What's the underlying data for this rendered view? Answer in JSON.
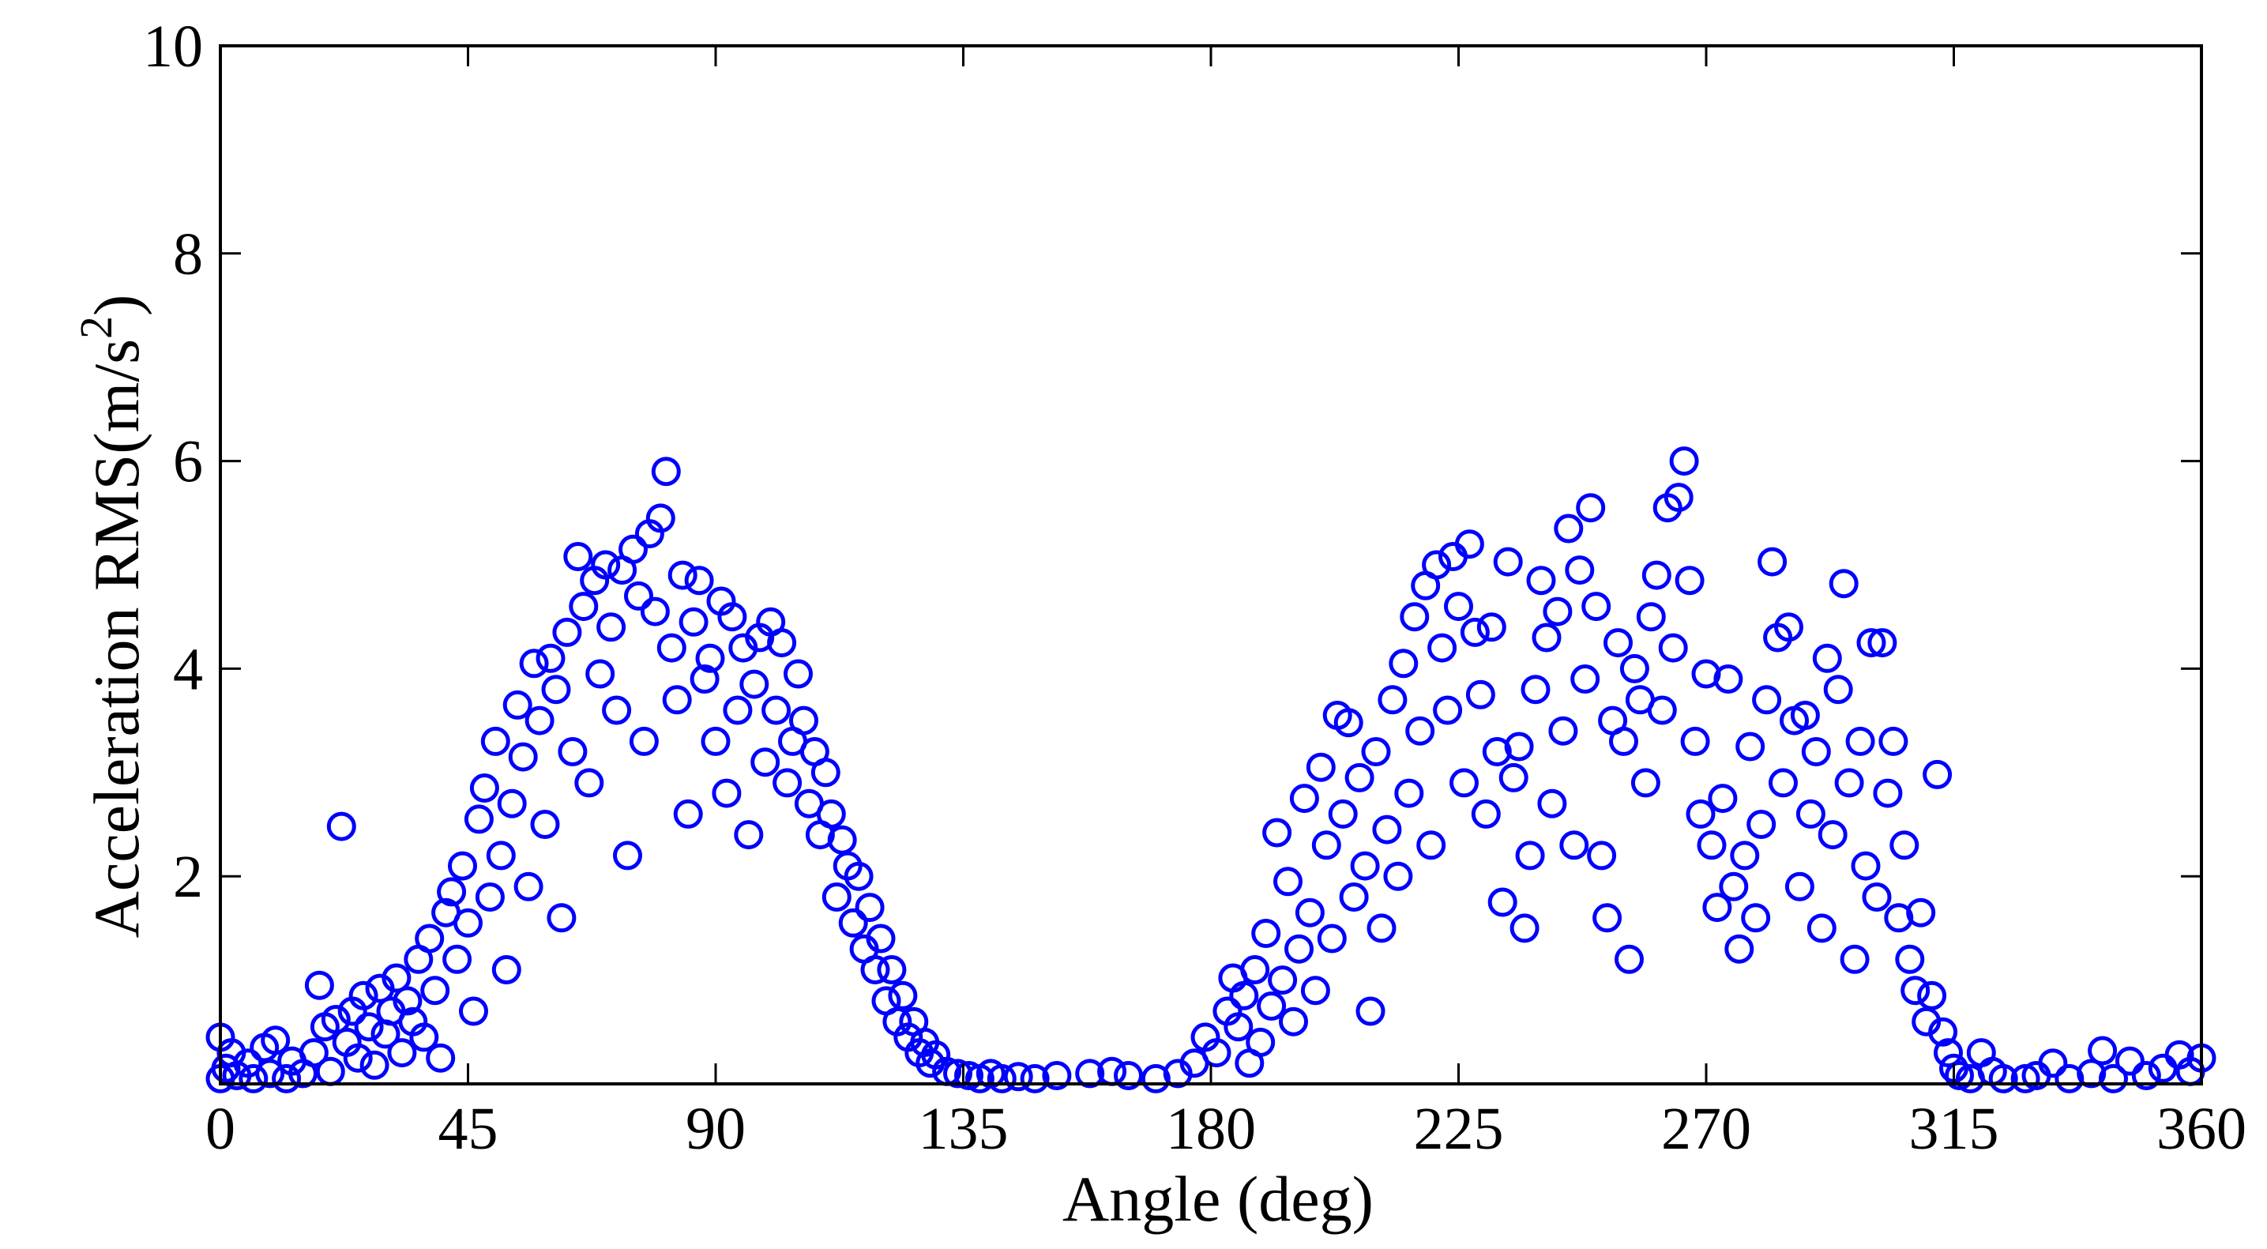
{
  "chart_data": {
    "type": "scatter",
    "title": "",
    "xlabel": "Angle (deg)",
    "ylabel": {
      "main": "Acceleration RMS(m/s",
      "superscript": "2",
      "close": ")"
    },
    "xlim": [
      0,
      360
    ],
    "ylim": [
      0,
      10
    ],
    "xticks": [
      0,
      45,
      90,
      135,
      180,
      225,
      270,
      315,
      360
    ],
    "yticks": [
      2,
      4,
      6,
      8,
      10
    ],
    "ytick_labels": [
      "2",
      "4",
      "6",
      "8",
      "10"
    ],
    "xtick_labels": [
      "0",
      "45",
      "90",
      "135",
      "180",
      "225",
      "270",
      "315",
      "360"
    ],
    "grid": false,
    "legend": "none",
    "marker": "open-circle",
    "colors": {
      "marker": "#0000ff",
      "axes": "#000000",
      "background": "#ffffff"
    },
    "series": [
      {
        "points": [
          [
            0,
            0.05
          ],
          [
            0,
            0.45
          ],
          [
            1,
            0.15
          ],
          [
            2,
            0.3
          ],
          [
            3,
            0.08
          ],
          [
            5,
            0.2
          ],
          [
            6,
            0.05
          ],
          [
            8,
            0.35
          ],
          [
            9,
            0.1
          ],
          [
            10,
            0.42
          ],
          [
            12,
            0.05
          ],
          [
            13,
            0.22
          ],
          [
            15,
            0.1
          ],
          [
            17,
            0.3
          ],
          [
            18,
            0.95
          ],
          [
            19,
            0.55
          ],
          [
            20,
            0.12
          ],
          [
            21,
            0.62
          ],
          [
            22,
            2.48
          ],
          [
            23,
            0.4
          ],
          [
            24,
            0.7
          ],
          [
            25,
            0.25
          ],
          [
            26,
            0.85
          ],
          [
            27,
            0.55
          ],
          [
            28,
            0.18
          ],
          [
            29,
            0.92
          ],
          [
            30,
            0.48
          ],
          [
            31,
            0.7
          ],
          [
            32,
            1.02
          ],
          [
            33,
            0.3
          ],
          [
            34,
            0.8
          ],
          [
            35,
            0.6
          ],
          [
            36,
            1.2
          ],
          [
            37,
            0.45
          ],
          [
            38,
            1.4
          ],
          [
            39,
            0.9
          ],
          [
            40,
            0.25
          ],
          [
            41,
            1.65
          ],
          [
            42,
            1.85
          ],
          [
            43,
            1.2
          ],
          [
            44,
            2.1
          ],
          [
            45,
            1.55
          ],
          [
            46,
            0.7
          ],
          [
            47,
            2.55
          ],
          [
            48,
            2.85
          ],
          [
            49,
            1.8
          ],
          [
            50,
            3.3
          ],
          [
            51,
            2.2
          ],
          [
            52,
            1.1
          ],
          [
            53,
            2.7
          ],
          [
            54,
            3.65
          ],
          [
            55,
            3.15
          ],
          [
            56,
            1.9
          ],
          [
            57,
            4.05
          ],
          [
            58,
            3.5
          ],
          [
            59,
            2.5
          ],
          [
            60,
            4.1
          ],
          [
            61,
            3.8
          ],
          [
            62,
            1.6
          ],
          [
            63,
            4.35
          ],
          [
            64,
            3.2
          ],
          [
            65,
            5.08
          ],
          [
            66,
            4.6
          ],
          [
            67,
            2.9
          ],
          [
            68,
            4.85
          ],
          [
            69,
            3.95
          ],
          [
            70,
            5.0
          ],
          [
            71,
            4.4
          ],
          [
            72,
            3.6
          ],
          [
            73,
            4.95
          ],
          [
            74,
            2.2
          ],
          [
            75,
            5.15
          ],
          [
            76,
            4.7
          ],
          [
            77,
            3.3
          ],
          [
            78,
            5.3
          ],
          [
            79,
            4.55
          ],
          [
            80,
            5.45
          ],
          [
            81,
            5.9
          ],
          [
            82,
            4.2
          ],
          [
            83,
            3.7
          ],
          [
            84,
            4.9
          ],
          [
            85,
            2.6
          ],
          [
            86,
            4.45
          ],
          [
            87,
            4.85
          ],
          [
            88,
            3.9
          ],
          [
            89,
            4.1
          ],
          [
            90,
            3.3
          ],
          [
            91,
            4.65
          ],
          [
            92,
            2.8
          ],
          [
            93,
            4.5
          ],
          [
            94,
            3.6
          ],
          [
            95,
            4.2
          ],
          [
            96,
            2.4
          ],
          [
            97,
            3.85
          ],
          [
            98,
            4.3
          ],
          [
            99,
            3.1
          ],
          [
            100,
            4.45
          ],
          [
            101,
            3.6
          ],
          [
            102,
            4.25
          ],
          [
            103,
            2.9
          ],
          [
            104,
            3.3
          ],
          [
            105,
            3.95
          ],
          [
            106,
            3.5
          ],
          [
            107,
            2.7
          ],
          [
            108,
            3.2
          ],
          [
            109,
            2.4
          ],
          [
            110,
            3.0
          ],
          [
            111,
            2.6
          ],
          [
            112,
            1.8
          ],
          [
            113,
            2.35
          ],
          [
            114,
            2.1
          ],
          [
            115,
            1.55
          ],
          [
            116,
            2.0
          ],
          [
            117,
            1.3
          ],
          [
            118,
            1.7
          ],
          [
            119,
            1.1
          ],
          [
            120,
            1.4
          ],
          [
            121,
            0.8
          ],
          [
            122,
            1.1
          ],
          [
            123,
            0.6
          ],
          [
            124,
            0.85
          ],
          [
            125,
            0.45
          ],
          [
            126,
            0.6
          ],
          [
            127,
            0.3
          ],
          [
            128,
            0.4
          ],
          [
            129,
            0.2
          ],
          [
            130,
            0.28
          ],
          [
            132,
            0.12
          ],
          [
            134,
            0.1
          ],
          [
            136,
            0.08
          ],
          [
            138,
            0.05
          ],
          [
            140,
            0.1
          ],
          [
            142,
            0.05
          ],
          [
            145,
            0.07
          ],
          [
            148,
            0.05
          ],
          [
            152,
            0.08
          ],
          [
            158,
            0.1
          ],
          [
            162,
            0.12
          ],
          [
            165,
            0.08
          ],
          [
            170,
            0.05
          ],
          [
            174,
            0.1
          ],
          [
            177,
            0.2
          ],
          [
            179,
            0.45
          ],
          [
            181,
            0.3
          ],
          [
            183,
            0.7
          ],
          [
            184,
            1.02
          ],
          [
            185,
            0.55
          ],
          [
            186,
            0.85
          ],
          [
            187,
            0.2
          ],
          [
            188,
            1.1
          ],
          [
            189,
            0.4
          ],
          [
            190,
            1.45
          ],
          [
            191,
            0.75
          ],
          [
            192,
            2.42
          ],
          [
            193,
            1.0
          ],
          [
            194,
            1.95
          ],
          [
            195,
            0.6
          ],
          [
            196,
            1.3
          ],
          [
            197,
            2.75
          ],
          [
            198,
            1.65
          ],
          [
            199,
            0.9
          ],
          [
            200,
            3.05
          ],
          [
            201,
            2.3
          ],
          [
            202,
            1.4
          ],
          [
            203,
            3.55
          ],
          [
            204,
            2.6
          ],
          [
            205,
            3.48
          ],
          [
            206,
            1.8
          ],
          [
            207,
            2.95
          ],
          [
            208,
            2.1
          ],
          [
            209,
            0.7
          ],
          [
            210,
            3.2
          ],
          [
            211,
            1.5
          ],
          [
            212,
            2.45
          ],
          [
            213,
            3.7
          ],
          [
            214,
            2.0
          ],
          [
            215,
            4.05
          ],
          [
            216,
            2.8
          ],
          [
            217,
            4.5
          ],
          [
            218,
            3.4
          ],
          [
            219,
            4.8
          ],
          [
            220,
            2.3
          ],
          [
            221,
            5.0
          ],
          [
            222,
            4.2
          ],
          [
            223,
            3.6
          ],
          [
            224,
            5.08
          ],
          [
            225,
            4.6
          ],
          [
            226,
            2.9
          ],
          [
            227,
            5.2
          ],
          [
            228,
            4.35
          ],
          [
            229,
            3.75
          ],
          [
            230,
            2.6
          ],
          [
            231,
            4.4
          ],
          [
            232,
            3.2
          ],
          [
            233,
            1.75
          ],
          [
            234,
            5.03
          ],
          [
            235,
            2.95
          ],
          [
            236,
            3.25
          ],
          [
            237,
            1.5
          ],
          [
            238,
            2.2
          ],
          [
            239,
            3.8
          ],
          [
            240,
            4.85
          ],
          [
            241,
            4.3
          ],
          [
            242,
            2.7
          ],
          [
            243,
            4.55
          ],
          [
            244,
            3.4
          ],
          [
            245,
            5.35
          ],
          [
            246,
            2.3
          ],
          [
            247,
            4.95
          ],
          [
            248,
            3.9
          ],
          [
            249,
            5.55
          ],
          [
            250,
            4.6
          ],
          [
            251,
            2.2
          ],
          [
            252,
            1.6
          ],
          [
            253,
            3.5
          ],
          [
            254,
            4.25
          ],
          [
            255,
            3.3
          ],
          [
            256,
            1.2
          ],
          [
            257,
            4.0
          ],
          [
            258,
            3.7
          ],
          [
            259,
            2.9
          ],
          [
            260,
            4.5
          ],
          [
            261,
            4.9
          ],
          [
            262,
            3.6
          ],
          [
            263,
            5.55
          ],
          [
            264,
            4.2
          ],
          [
            265,
            5.65
          ],
          [
            266,
            6.0
          ],
          [
            267,
            4.85
          ],
          [
            268,
            3.3
          ],
          [
            269,
            2.6
          ],
          [
            270,
            3.95
          ],
          [
            271,
            2.3
          ],
          [
            272,
            1.7
          ],
          [
            273,
            2.75
          ],
          [
            274,
            3.9
          ],
          [
            275,
            1.9
          ],
          [
            276,
            1.3
          ],
          [
            277,
            2.2
          ],
          [
            278,
            3.25
          ],
          [
            279,
            1.6
          ],
          [
            280,
            2.5
          ],
          [
            281,
            3.7
          ],
          [
            282,
            5.03
          ],
          [
            283,
            4.3
          ],
          [
            284,
            2.9
          ],
          [
            285,
            4.4
          ],
          [
            286,
            3.5
          ],
          [
            287,
            1.9
          ],
          [
            288,
            3.55
          ],
          [
            289,
            2.6
          ],
          [
            290,
            3.2
          ],
          [
            291,
            1.5
          ],
          [
            292,
            4.1
          ],
          [
            293,
            2.4
          ],
          [
            294,
            3.8
          ],
          [
            295,
            4.82
          ],
          [
            296,
            2.9
          ],
          [
            297,
            1.2
          ],
          [
            298,
            3.3
          ],
          [
            299,
            2.1
          ],
          [
            300,
            4.25
          ],
          [
            301,
            1.8
          ],
          [
            302,
            4.25
          ],
          [
            303,
            2.8
          ],
          [
            304,
            3.3
          ],
          [
            305,
            1.6
          ],
          [
            306,
            2.3
          ],
          [
            307,
            1.2
          ],
          [
            308,
            0.9
          ],
          [
            309,
            1.65
          ],
          [
            310,
            0.6
          ],
          [
            311,
            0.85
          ],
          [
            312,
            2.98
          ],
          [
            313,
            0.5
          ],
          [
            314,
            0.3
          ],
          [
            315,
            0.15
          ],
          [
            316,
            0.08
          ],
          [
            318,
            0.05
          ],
          [
            320,
            0.3
          ],
          [
            322,
            0.12
          ],
          [
            324,
            0.05
          ],
          [
            328,
            0.05
          ],
          [
            330,
            0.08
          ],
          [
            333,
            0.2
          ],
          [
            336,
            0.05
          ],
          [
            340,
            0.1
          ],
          [
            342,
            0.32
          ],
          [
            344,
            0.05
          ],
          [
            347,
            0.22
          ],
          [
            350,
            0.08
          ],
          [
            353,
            0.15
          ],
          [
            356,
            0.28
          ],
          [
            358,
            0.12
          ],
          [
            360,
            0.25
          ]
        ]
      }
    ]
  }
}
